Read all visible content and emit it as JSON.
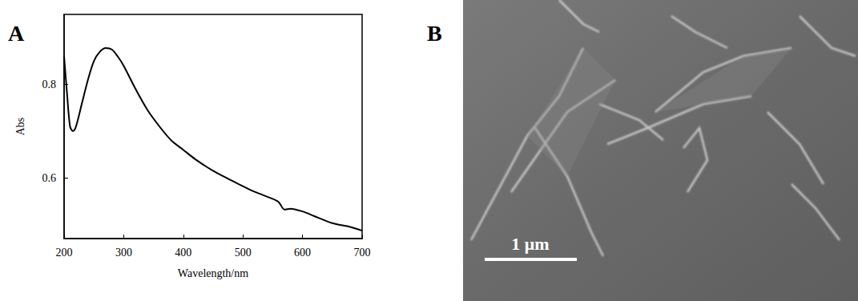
{
  "panel_labels": [
    "A",
    "B"
  ],
  "chart_data": {
    "type": "line",
    "x_label": "Wavelength/nm",
    "y_label": "Abs",
    "x": [
      200,
      205,
      210,
      215,
      220,
      230,
      240,
      250,
      260,
      270,
      280,
      290,
      300,
      320,
      340,
      360,
      380,
      400,
      420,
      450,
      480,
      500,
      520,
      550,
      560,
      570,
      580,
      600,
      620,
      650,
      680,
      700
    ],
    "values": [
      0.86,
      0.78,
      0.71,
      0.7,
      0.71,
      0.76,
      0.81,
      0.85,
      0.87,
      0.878,
      0.875,
      0.86,
      0.84,
      0.79,
      0.745,
      0.71,
      0.68,
      0.66,
      0.64,
      0.615,
      0.595,
      0.582,
      0.57,
      0.555,
      0.548,
      0.532,
      0.534,
      0.528,
      0.518,
      0.503,
      0.495,
      0.487
    ],
    "color": "#000000",
    "xlim": [
      200,
      700
    ],
    "xticks": [
      200,
      300,
      400,
      500,
      600,
      700
    ],
    "ylim": [
      0.47,
      0.95
    ],
    "yticks": [
      0.6,
      0.8
    ],
    "grid": false
  },
  "image": {
    "scale_bar": "1 μm"
  }
}
